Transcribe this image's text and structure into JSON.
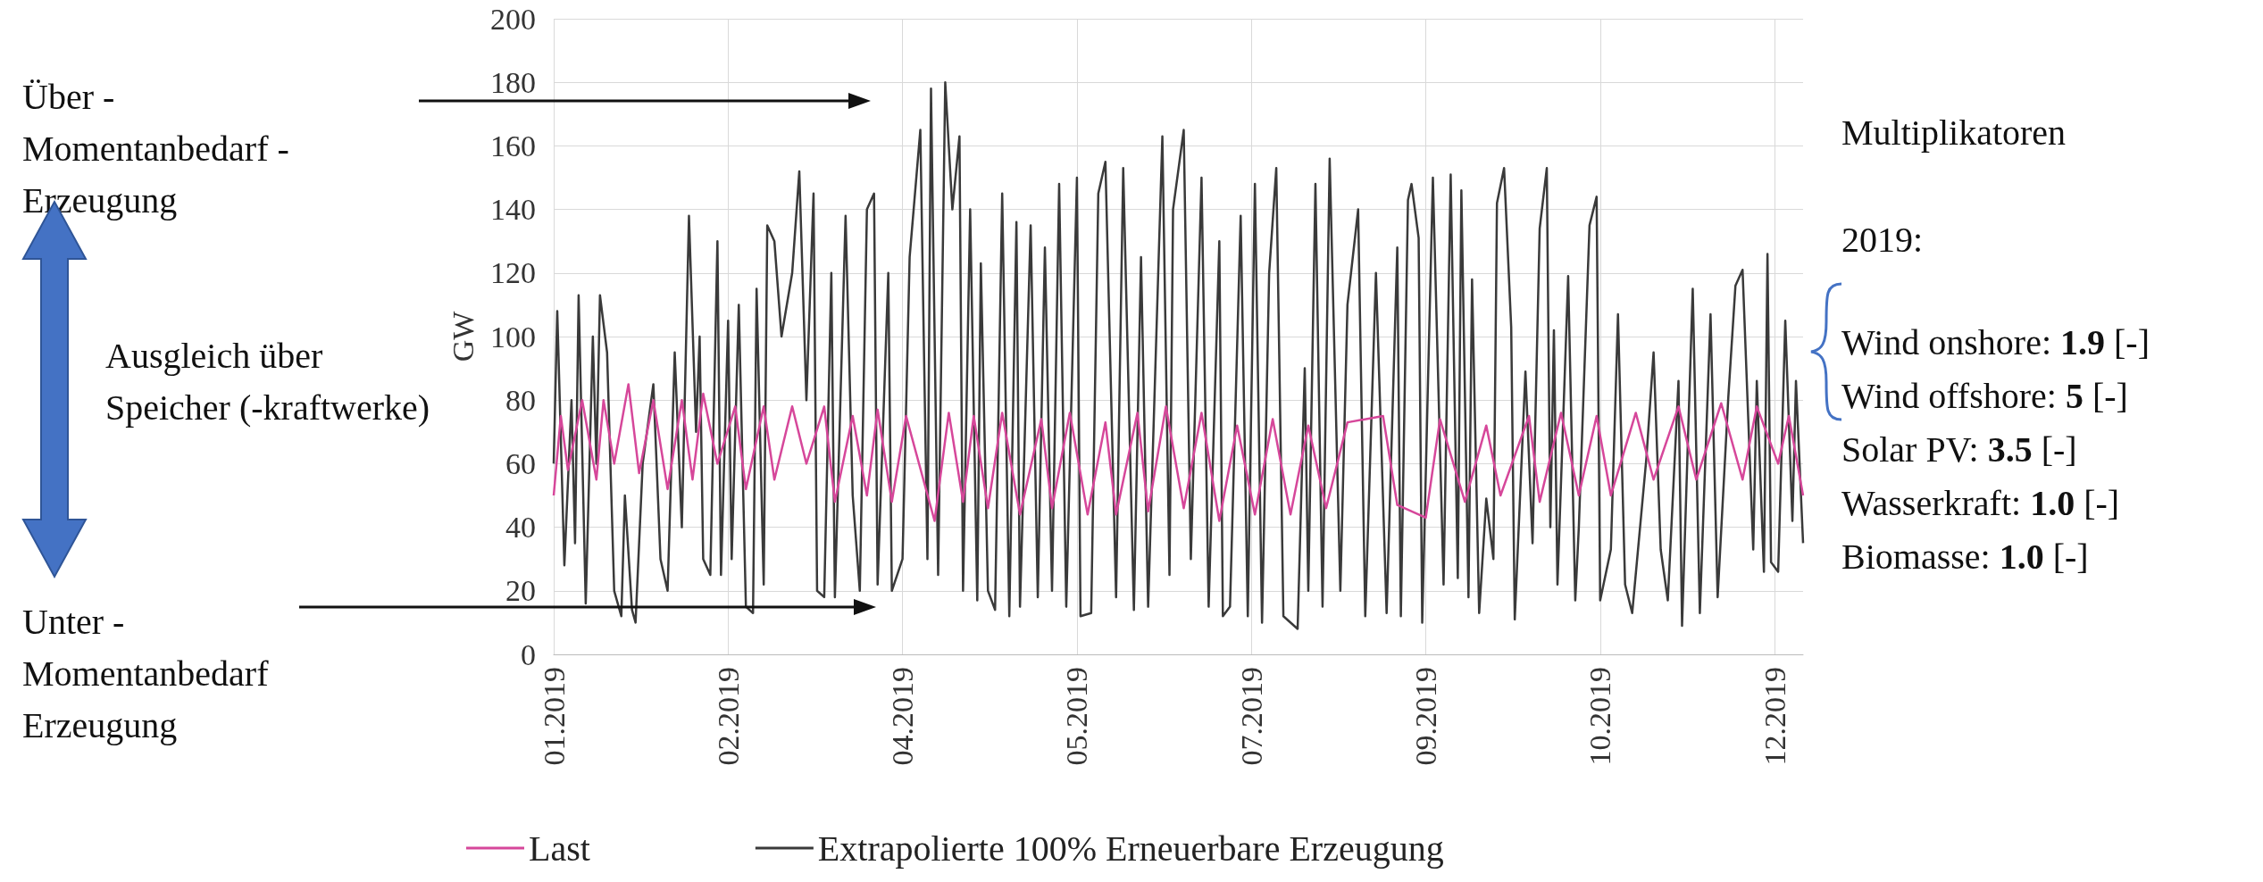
{
  "chart_data": {
    "type": "line",
    "ylabel": "GW",
    "xlim": [
      "2019-01-01",
      "2019-12-18"
    ],
    "ylim": [
      0,
      200
    ],
    "yticks": [
      0,
      20,
      40,
      60,
      80,
      100,
      120,
      140,
      160,
      180,
      200
    ],
    "xticks": [
      {
        "value": "2019-01-01",
        "label": "01.2019"
      },
      {
        "value": "2019-02-19",
        "label": "02.2019"
      },
      {
        "value": "2019-04-09",
        "label": "04.2019"
      },
      {
        "value": "2019-05-28",
        "label": "05.2019"
      },
      {
        "value": "2019-07-16",
        "label": "07.2019"
      },
      {
        "value": "2019-09-03",
        "label": "09.2019"
      },
      {
        "value": "2019-10-22",
        "label": "10.2019"
      },
      {
        "value": "2019-12-10",
        "label": "12.2019"
      }
    ],
    "grid": true,
    "legend": "bottom",
    "marker": "none",
    "line_style": "solid",
    "annotations": [
      "Über -\nMomentanbedarf -\nErzeugung",
      "Ausgleich über\nSpeicher (-kraftwerke)",
      "Unter -\nMomentanbedarf\nErzeugung",
      "Multiplikatoren",
      "2019:",
      "Wind onshore: 1.9 [-]",
      "Wind offshore: 5 [-]",
      "Solar PV: 3.5 [-]",
      "Wasserkraft: 1.0 [-]",
      "Biomasse: 1.0 [-]"
    ],
    "series": [
      {
        "name": "Last",
        "color": "#d6479a",
        "x": [
          "2019-01-01",
          "2019-01-03",
          "2019-01-05",
          "2019-01-09",
          "2019-01-13",
          "2019-01-15",
          "2019-01-18",
          "2019-01-22",
          "2019-01-25",
          "2019-01-29",
          "2019-02-02",
          "2019-02-06",
          "2019-02-09",
          "2019-02-12",
          "2019-02-16",
          "2019-02-21",
          "2019-02-24",
          "2019-03-01",
          "2019-03-04",
          "2019-03-09",
          "2019-03-13",
          "2019-03-18",
          "2019-03-21",
          "2019-03-26",
          "2019-03-30",
          "2019-04-02",
          "2019-04-06",
          "2019-04-10",
          "2019-04-18",
          "2019-04-22",
          "2019-04-26",
          "2019-04-29",
          "2019-05-03",
          "2019-05-07",
          "2019-05-12",
          "2019-05-18",
          "2019-05-21",
          "2019-05-26",
          "2019-05-31",
          "2019-06-05",
          "2019-06-08",
          "2019-06-14",
          "2019-06-17",
          "2019-06-22",
          "2019-06-27",
          "2019-07-02",
          "2019-07-07",
          "2019-07-12",
          "2019-07-17",
          "2019-07-22",
          "2019-07-27",
          "2019-08-01",
          "2019-08-06",
          "2019-08-12",
          "2019-08-22",
          "2019-08-26",
          "2019-09-03",
          "2019-09-07",
          "2019-09-14",
          "2019-09-20",
          "2019-09-24",
          "2019-10-02",
          "2019-10-05",
          "2019-10-11",
          "2019-10-16",
          "2019-10-21",
          "2019-10-25",
          "2019-11-01",
          "2019-11-06",
          "2019-11-13",
          "2019-11-18",
          "2019-11-25",
          "2019-12-01",
          "2019-12-05",
          "2019-12-11",
          "2019-12-14",
          "2019-12-18"
        ],
        "values": [
          50,
          75,
          58,
          80,
          55,
          80,
          60,
          85,
          57,
          80,
          52,
          80,
          55,
          82,
          60,
          78,
          52,
          78,
          55,
          78,
          60,
          78,
          48,
          75,
          50,
          77,
          48,
          75,
          42,
          76,
          48,
          75,
          46,
          76,
          44,
          74,
          46,
          76,
          44,
          73,
          44,
          76,
          45,
          78,
          46,
          76,
          42,
          72,
          44,
          74,
          44,
          72,
          46,
          73,
          75,
          47,
          43,
          74,
          48,
          72,
          50,
          75,
          48,
          76,
          50,
          75,
          50,
          76,
          55,
          78,
          55,
          79,
          55,
          78,
          60,
          75,
          50
        ]
      },
      {
        "name": "Extrapolierte 100% Erneuerbare Erzeugung",
        "color": "#3a3a3a",
        "x": [
          "2019-01-01",
          "2019-01-02",
          "2019-01-04",
          "2019-01-06",
          "2019-01-07",
          "2019-01-08",
          "2019-01-10",
          "2019-01-12",
          "2019-01-13",
          "2019-01-14",
          "2019-01-16",
          "2019-01-18",
          "2019-01-20",
          "2019-01-21",
          "2019-01-23",
          "2019-01-24",
          "2019-01-26",
          "2019-01-29",
          "2019-01-31",
          "2019-02-02",
          "2019-02-04",
          "2019-02-06",
          "2019-02-08",
          "2019-02-10",
          "2019-02-11",
          "2019-02-12",
          "2019-02-14",
          "2019-02-16",
          "2019-02-17",
          "2019-02-19",
          "2019-02-20",
          "2019-02-22",
          "2019-02-24",
          "2019-02-26",
          "2019-02-27",
          "2019-03-01",
          "2019-03-02",
          "2019-03-04",
          "2019-03-06",
          "2019-03-09",
          "2019-03-11",
          "2019-03-13",
          "2019-03-15",
          "2019-03-16",
          "2019-03-18",
          "2019-03-20",
          "2019-03-21",
          "2019-03-24",
          "2019-03-26",
          "2019-03-28",
          "2019-03-30",
          "2019-04-01",
          "2019-04-02",
          "2019-04-05",
          "2019-04-06",
          "2019-04-09",
          "2019-04-11",
          "2019-04-14",
          "2019-04-16",
          "2019-04-17",
          "2019-04-19",
          "2019-04-21",
          "2019-04-23",
          "2019-04-25",
          "2019-04-26",
          "2019-04-28",
          "2019-04-30",
          "2019-05-01",
          "2019-05-03",
          "2019-05-05",
          "2019-05-07",
          "2019-05-09",
          "2019-05-11",
          "2019-05-12",
          "2019-05-15",
          "2019-05-17",
          "2019-05-19",
          "2019-05-21",
          "2019-05-23",
          "2019-05-25",
          "2019-05-28",
          "2019-05-29",
          "2019-06-01",
          "2019-06-03",
          "2019-06-05",
          "2019-06-08",
          "2019-06-10",
          "2019-06-13",
          "2019-06-15",
          "2019-06-17",
          "2019-06-21",
          "2019-06-23",
          "2019-06-24",
          "2019-06-27",
          "2019-06-29",
          "2019-07-02",
          "2019-07-04",
          "2019-07-07",
          "2019-07-08",
          "2019-07-10",
          "2019-07-13",
          "2019-07-15",
          "2019-07-17",
          "2019-07-19",
          "2019-07-21",
          "2019-07-23",
          "2019-07-25",
          "2019-07-29",
          "2019-07-31",
          "2019-08-01",
          "2019-08-03",
          "2019-08-05",
          "2019-08-07",
          "2019-08-10",
          "2019-08-12",
          "2019-08-15",
          "2019-08-17",
          "2019-08-20",
          "2019-08-23",
          "2019-08-26",
          "2019-08-27",
          "2019-08-29",
          "2019-08-30",
          "2019-09-01",
          "2019-09-02",
          "2019-09-05",
          "2019-09-08",
          "2019-09-10",
          "2019-09-12",
          "2019-09-13",
          "2019-09-15",
          "2019-09-16",
          "2019-09-18",
          "2019-09-20",
          "2019-09-22",
          "2019-09-23",
          "2019-09-25",
          "2019-09-27",
          "2019-09-28",
          "2019-10-01",
          "2019-10-03",
          "2019-10-05",
          "2019-10-07",
          "2019-10-08",
          "2019-10-09",
          "2019-10-10",
          "2019-10-13",
          "2019-10-15",
          "2019-10-16",
          "2019-10-19",
          "2019-10-21",
          "2019-10-22",
          "2019-10-25",
          "2019-10-27",
          "2019-10-29",
          "2019-10-31",
          "2019-11-04",
          "2019-11-06",
          "2019-11-08",
          "2019-11-10",
          "2019-11-13",
          "2019-11-14",
          "2019-11-17",
          "2019-11-19",
          "2019-11-22",
          "2019-11-24",
          "2019-11-27",
          "2019-11-29",
          "2019-12-01",
          "2019-12-04",
          "2019-12-05",
          "2019-12-07",
          "2019-12-08",
          "2019-12-09",
          "2019-12-11",
          "2019-12-13",
          "2019-12-15",
          "2019-12-16",
          "2019-12-18"
        ],
        "values": [
          60,
          108,
          28,
          80,
          35,
          113,
          16,
          100,
          60,
          113,
          95,
          20,
          12,
          50,
          14,
          10,
          60,
          85,
          30,
          20,
          95,
          40,
          138,
          70,
          100,
          30,
          25,
          130,
          25,
          105,
          30,
          110,
          15,
          13,
          115,
          22,
          135,
          130,
          100,
          120,
          152,
          80,
          145,
          20,
          18,
          120,
          18,
          138,
          50,
          20,
          140,
          145,
          22,
          120,
          20,
          30,
          125,
          165,
          30,
          178,
          25,
          180,
          140,
          163,
          20,
          140,
          17,
          123,
          20,
          14,
          145,
          12,
          136,
          15,
          135,
          18,
          128,
          20,
          148,
          15,
          150,
          12,
          13,
          145,
          155,
          18,
          153,
          14,
          125,
          15,
          163,
          25,
          140,
          165,
          30,
          150,
          15,
          130,
          12,
          15,
          138,
          12,
          148,
          10,
          120,
          153,
          12,
          8,
          90,
          20,
          148,
          15,
          156,
          20,
          110,
          140,
          12,
          120,
          13,
          128,
          12,
          143,
          148,
          131,
          10,
          150,
          22,
          151,
          24,
          146,
          18,
          118,
          13,
          49,
          30,
          142,
          153,
          103,
          11,
          89,
          35,
          134,
          153,
          40,
          102,
          22,
          119,
          17,
          40,
          135,
          144,
          17,
          33,
          107,
          22,
          13,
          62,
          95,
          33,
          17,
          86,
          9,
          115,
          13,
          107,
          18,
          81,
          116,
          121,
          33,
          86,
          26,
          126,
          29,
          26,
          105,
          42,
          86,
          35
        ]
      }
    ]
  }
}
